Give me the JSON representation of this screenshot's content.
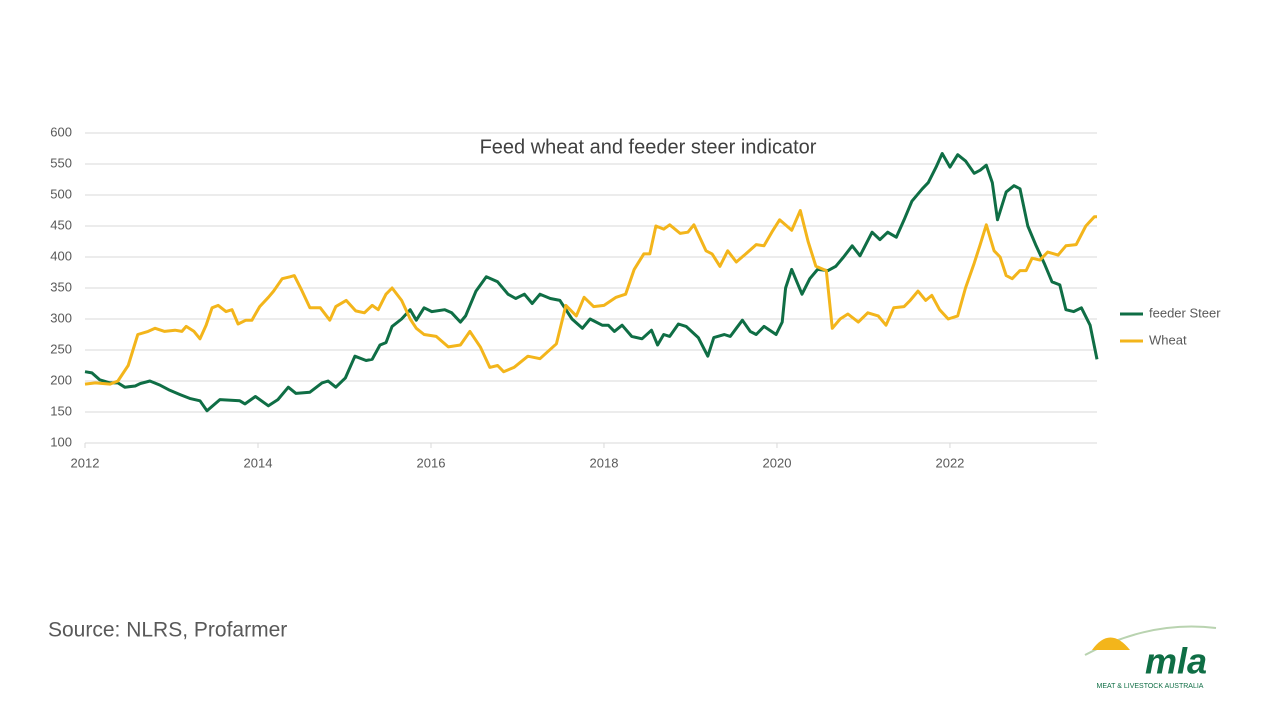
{
  "chart_data": {
    "type": "line",
    "title": "Feed wheat and feeder steer indicator",
    "xlim": [
      2012,
      2023.7
    ],
    "xticks": [
      2012,
      2014,
      2016,
      2018,
      2020,
      2022
    ],
    "ylim": [
      100,
      600
    ],
    "yticks": [
      100,
      150,
      200,
      250,
      300,
      350,
      400,
      450,
      500,
      550,
      600
    ],
    "grid": true,
    "legend": "right",
    "series": [
      {
        "name": "feeder Steer",
        "color": "#0f6e45",
        "x": [
          2012.0,
          2012.08,
          2012.17,
          2012.29,
          2012.38,
          2012.46,
          2012.58,
          2012.64,
          2012.75,
          2012.87,
          2012.98,
          2013.1,
          2013.21,
          2013.33,
          2013.41,
          2013.56,
          2013.79,
          2013.85,
          2013.97,
          2014.12,
          2014.23,
          2014.35,
          2014.44,
          2014.6,
          2014.74,
          2014.81,
          2014.9,
          2015.01,
          2015.12,
          2015.25,
          2015.32,
          2015.41,
          2015.48,
          2015.55,
          2015.66,
          2015.76,
          2015.83,
          2015.92,
          2016.01,
          2016.16,
          2016.24,
          2016.34,
          2016.4,
          2016.52,
          2016.64,
          2016.77,
          2016.89,
          2016.98,
          2017.08,
          2017.17,
          2017.26,
          2017.38,
          2017.49,
          2017.63,
          2017.75,
          2017.84,
          2017.98,
          2018.05,
          2018.12,
          2018.21,
          2018.32,
          2018.44,
          2018.55,
          2018.62,
          2018.69,
          2018.76,
          2018.86,
          2018.95,
          2019.09,
          2019.2,
          2019.27,
          2019.39,
          2019.46,
          2019.53,
          2019.6,
          2019.69,
          2019.76,
          2019.85,
          2019.99,
          2020.06,
          2020.1,
          2020.17,
          2020.29,
          2020.38,
          2020.47,
          2020.59,
          2020.68,
          2020.77,
          2020.87,
          2020.96,
          2021.1,
          2021.19,
          2021.28,
          2021.38,
          2021.47,
          2021.56,
          2021.68,
          2021.75,
          2021.84,
          2021.91,
          2022.0,
          2022.09,
          2022.18,
          2022.28,
          2022.35,
          2022.42,
          2022.49,
          2022.55,
          2022.65,
          2022.74,
          2022.81,
          2022.9,
          2022.99,
          2023.09,
          2023.18,
          2023.27,
          2023.34,
          2023.43,
          2023.52,
          2023.62,
          2023.7
        ],
        "values": [
          215,
          213,
          202,
          197,
          197,
          190,
          192,
          196,
          200,
          193,
          185,
          178,
          172,
          168,
          152,
          170,
          168,
          163,
          175,
          160,
          170,
          190,
          180,
          182,
          197,
          200,
          190,
          205,
          240,
          233,
          235,
          258,
          262,
          288,
          300,
          315,
          298,
          318,
          312,
          315,
          310,
          295,
          305,
          345,
          368,
          360,
          340,
          333,
          340,
          325,
          340,
          333,
          330,
          300,
          285,
          300,
          290,
          290,
          280,
          290,
          272,
          268,
          282,
          258,
          275,
          272,
          292,
          288,
          270,
          240,
          270,
          275,
          272,
          285,
          298,
          280,
          275,
          288,
          275,
          295,
          350,
          380,
          340,
          365,
          380,
          378,
          385,
          400,
          418,
          402,
          440,
          428,
          440,
          432,
          460,
          490,
          510,
          520,
          545,
          567,
          545,
          565,
          555,
          535,
          540,
          548,
          520,
          460,
          505,
          515,
          510,
          450,
          420,
          390,
          360,
          355,
          315,
          312,
          318,
          290,
          235
        ]
      },
      {
        "name": "Wheat",
        "color": "#f3b51b",
        "x": [
          2012.0,
          2012.12,
          2012.29,
          2012.38,
          2012.5,
          2012.61,
          2012.73,
          2012.81,
          2012.92,
          2013.04,
          2013.12,
          2013.17,
          2013.26,
          2013.33,
          2013.4,
          2013.47,
          2013.54,
          2013.63,
          2013.7,
          2013.77,
          2013.86,
          2013.93,
          2014.02,
          2014.12,
          2014.18,
          2014.28,
          2014.37,
          2014.42,
          2014.51,
          2014.6,
          2014.72,
          2014.83,
          2014.9,
          2015.02,
          2015.13,
          2015.23,
          2015.32,
          2015.39,
          2015.48,
          2015.55,
          2015.66,
          2015.76,
          2015.83,
          2015.92,
          2016.06,
          2016.2,
          2016.34,
          2016.45,
          2016.57,
          2016.68,
          2016.77,
          2016.84,
          2016.96,
          2017.12,
          2017.26,
          2017.45,
          2017.56,
          2017.68,
          2017.77,
          2017.88,
          2018.0,
          2018.14,
          2018.25,
          2018.35,
          2018.46,
          2018.53,
          2018.6,
          2018.69,
          2018.76,
          2018.88,
          2018.97,
          2019.04,
          2019.18,
          2019.25,
          2019.34,
          2019.43,
          2019.53,
          2019.64,
          2019.76,
          2019.85,
          2019.94,
          2020.03,
          2020.17,
          2020.27,
          2020.36,
          2020.45,
          2020.57,
          2020.64,
          2020.73,
          2020.82,
          2020.94,
          2021.05,
          2021.17,
          2021.26,
          2021.35,
          2021.47,
          2021.54,
          2021.63,
          2021.72,
          2021.79,
          2021.88,
          2021.98,
          2022.09,
          2022.18,
          2022.28,
          2022.35,
          2022.42,
          2022.51,
          2022.58,
          2022.65,
          2022.72,
          2022.81,
          2022.88,
          2022.95,
          2023.04,
          2023.13,
          2023.25,
          2023.34,
          2023.46,
          2023.57,
          2023.67,
          2023.7
        ],
        "values": [
          195,
          197,
          195,
          200,
          225,
          275,
          280,
          285,
          280,
          282,
          280,
          288,
          280,
          268,
          290,
          318,
          322,
          312,
          315,
          292,
          298,
          298,
          320,
          335,
          345,
          365,
          368,
          370,
          345,
          318,
          318,
          298,
          320,
          330,
          313,
          310,
          322,
          315,
          340,
          350,
          330,
          300,
          285,
          275,
          272,
          255,
          258,
          280,
          255,
          222,
          225,
          215,
          222,
          240,
          236,
          260,
          322,
          305,
          335,
          320,
          322,
          335,
          340,
          380,
          405,
          405,
          450,
          445,
          452,
          438,
          440,
          452,
          410,
          405,
          385,
          410,
          392,
          405,
          420,
          418,
          440,
          460,
          443,
          475,
          425,
          385,
          378,
          285,
          300,
          308,
          295,
          310,
          305,
          290,
          318,
          320,
          330,
          345,
          330,
          338,
          315,
          300,
          305,
          350,
          390,
          420,
          452,
          410,
          400,
          370,
          365,
          378,
          378,
          398,
          395,
          408,
          403,
          418,
          420,
          450,
          465,
          465
        ]
      }
    ]
  },
  "source": "Source: NLRS, Profarmer",
  "logo": {
    "name": "mla",
    "tagline": "MEAT & LIVESTOCK AUSTRALIA"
  }
}
